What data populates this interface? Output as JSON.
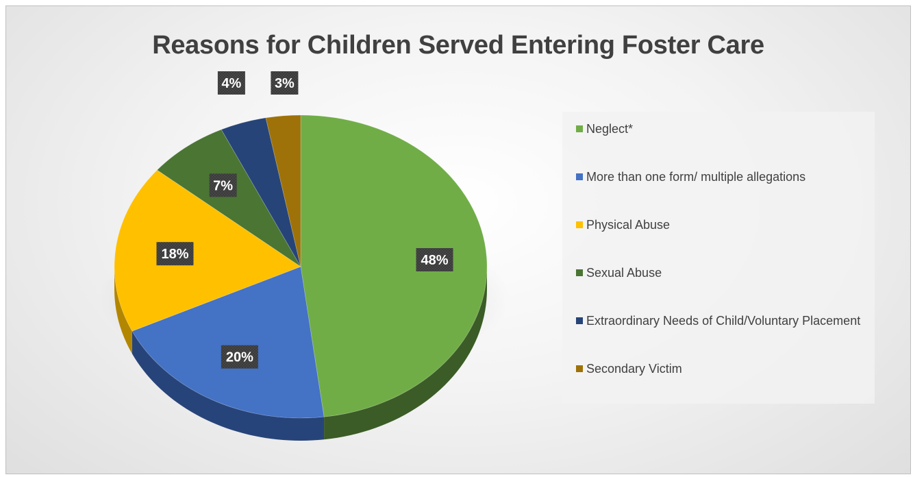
{
  "chart_data": {
    "type": "pie",
    "title": "Reasons for Children Served Entering Foster Care",
    "legend_position": "right",
    "slices": [
      {
        "label": "Neglect*",
        "value": 48,
        "display": "48%",
        "color": "#70ad47",
        "side_color": "#3b5c26"
      },
      {
        "label": "More than one form/ multiple allegations",
        "value": 20,
        "display": "20%",
        "color": "#4472c4",
        "side_color": "#27447a"
      },
      {
        "label": "Physical Abuse",
        "value": 18,
        "display": "18%",
        "color": "#ffc000",
        "side_color": "#b38600"
      },
      {
        "label": "Sexual Abuse",
        "value": 7,
        "display": "7%",
        "color": "#4a7533",
        "side_color": "#2a4420"
      },
      {
        "label": "Extraordinary Needs of Child/Voluntary Placement",
        "value": 4,
        "display": "4%",
        "color": "#264478",
        "side_color": "#152846"
      },
      {
        "label": "Secondary Victim",
        "value": 3,
        "display": "3%",
        "color": "#9e7209",
        "side_color": "#5f4506"
      }
    ]
  }
}
